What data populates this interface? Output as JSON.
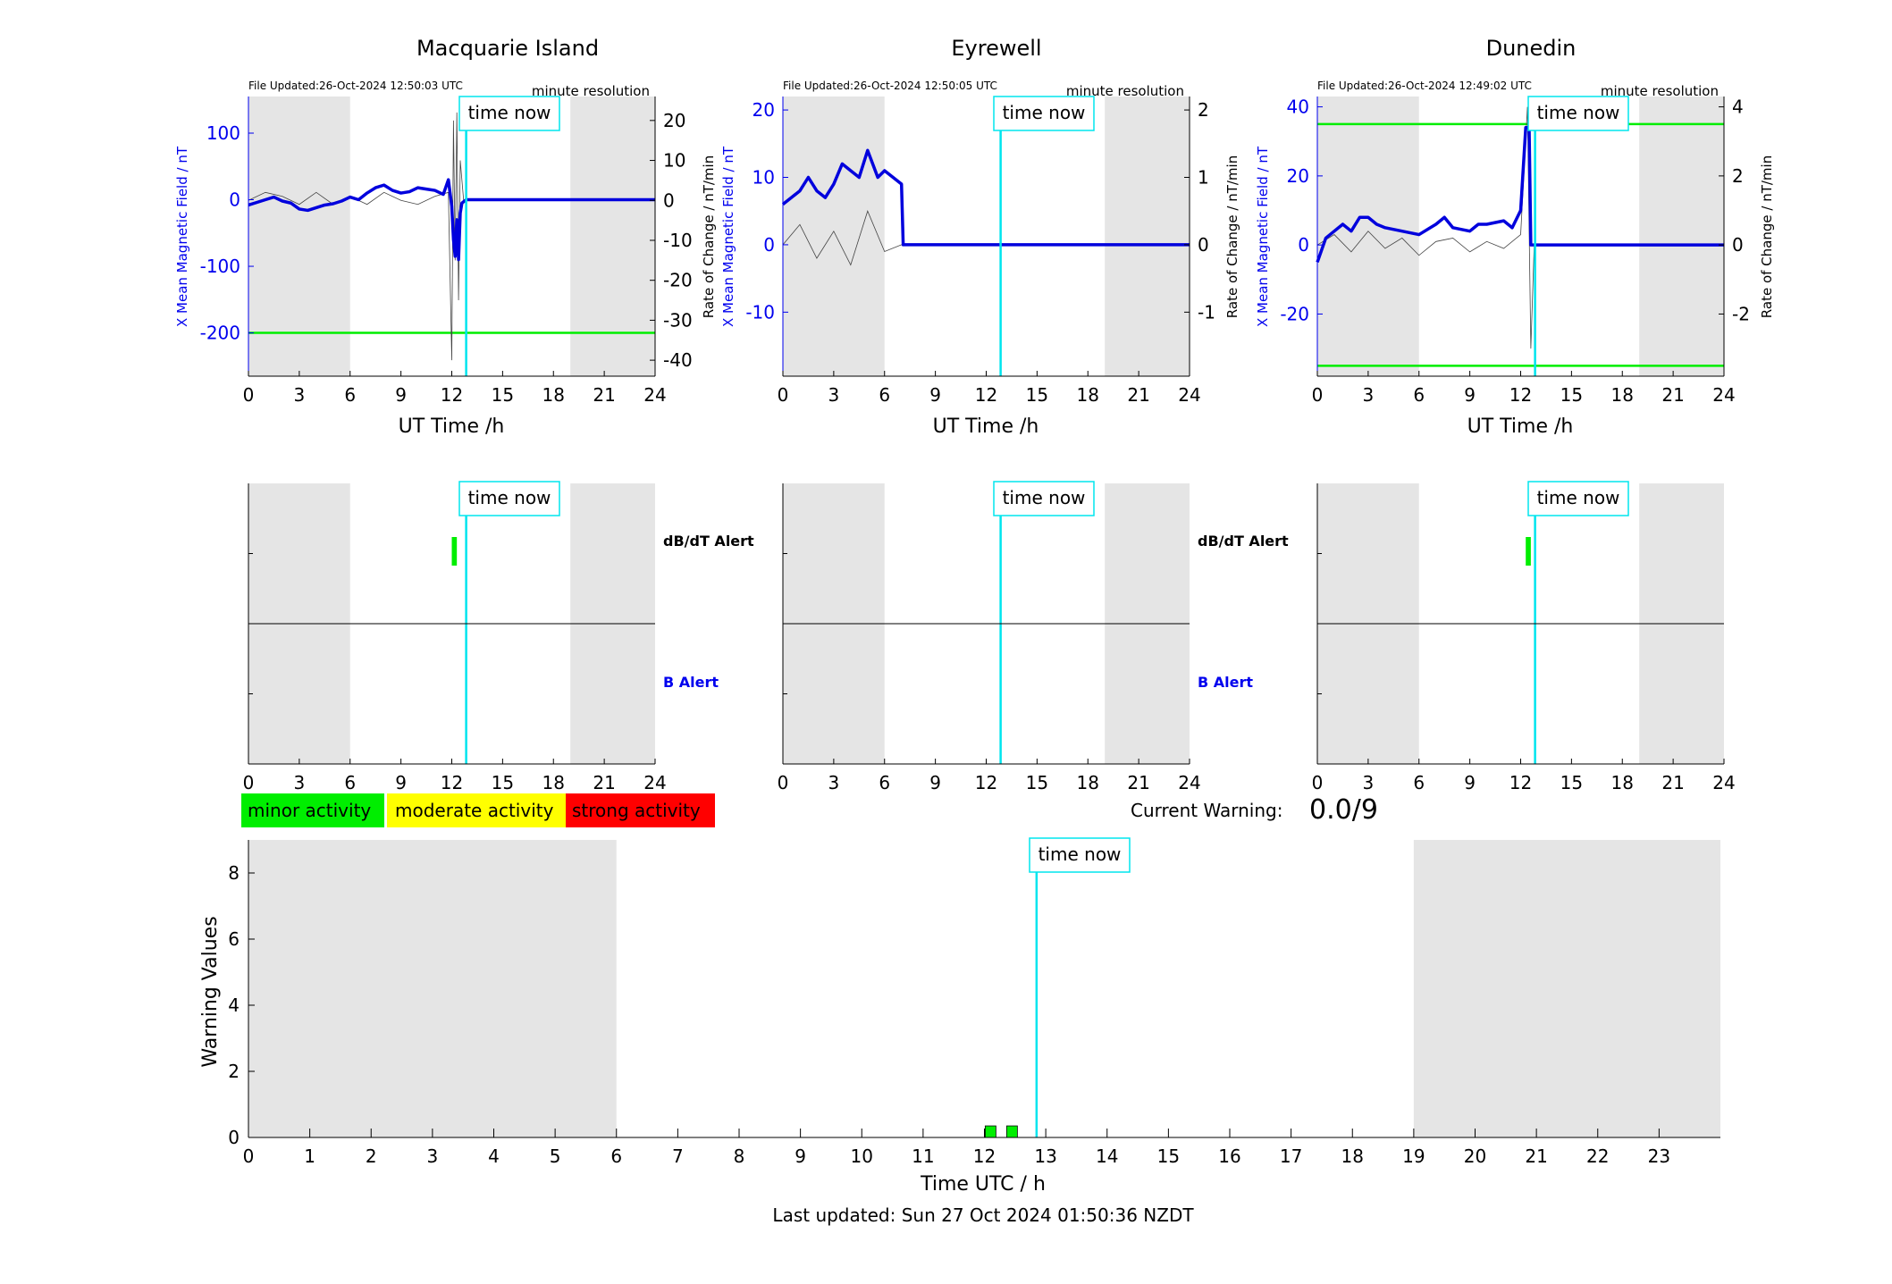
{
  "stations": [
    {
      "title": "Macquarie Island",
      "file_updated": "File Updated:26-Oct-2024 12:50:03 UTC",
      "resolution": "minute resolution",
      "ylabel_left": "X Mean Magnetic Field / nT",
      "ylabel_right": "Rate of Change / nT/min",
      "left_ticks": [
        100,
        0,
        -100,
        -200
      ],
      "right_ticks": [
        20,
        10,
        0,
        -10,
        -20,
        -30,
        -40
      ]
    },
    {
      "title": "Eyrewell",
      "file_updated": "File Updated:26-Oct-2024 12:50:05 UTC",
      "resolution": "minute resolution",
      "ylabel_left": "X Mean Magnetic Field / nT",
      "ylabel_right": "Rate of Change / nT/min",
      "left_ticks": [
        20,
        10,
        0,
        -10
      ],
      "right_ticks": [
        2,
        1,
        0,
        -1
      ]
    },
    {
      "title": "Dunedin",
      "file_updated": "File Updated:26-Oct-2024 12:49:02 UTC",
      "resolution": "minute resolution",
      "ylabel_left": "X Mean Magnetic Field / nT",
      "ylabel_right": "Rate of Change / nT/min",
      "left_ticks": [
        40,
        20,
        0,
        -20
      ],
      "right_ticks": [
        4,
        2,
        0,
        -2
      ]
    }
  ],
  "labels": {
    "time_now": "time now",
    "ut_time": "UT Time /h",
    "dbdt_alert": "dB/dT Alert",
    "b_alert": "B Alert",
    "legend_minor": "minor activity",
    "legend_moderate": "moderate activity",
    "legend_strong": "strong activity",
    "current_warning_label": "Current Warning:",
    "current_warning_value": "0.0/9",
    "warning_ylabel": "Warning Values",
    "warning_xlabel": "Time UTC / h",
    "last_updated": "Last updated: Sun 27 Oct 2024 01:50:36 NZDT"
  },
  "colors": {
    "field": "#0000dd",
    "rate": "#444444",
    "threshold": "#00ee00",
    "time_now": "#00e5ee",
    "night_shade": "#e5e5e5",
    "minor": "#00ee00",
    "moderate": "#ffff00",
    "strong": "#ff0000",
    "b_alert_text": "#0000ee"
  },
  "chart_data": [
    {
      "type": "line",
      "title": "Macquarie Island",
      "xlabel": "UT Time /h",
      "ylabel": "X Mean Magnetic Field / nT",
      "y2label": "Rate of Change / nT/min",
      "xlim": [
        0,
        24
      ],
      "ylim": [
        -265,
        155
      ],
      "y2lim": [
        -44,
        26
      ],
      "xticks": [
        0,
        3,
        6,
        9,
        12,
        15,
        18,
        21,
        24
      ],
      "night_shading_h": [
        [
          0,
          6
        ],
        [
          19,
          24
        ]
      ],
      "time_now_h": 12.85,
      "threshold_nT": [
        -200
      ],
      "series": [
        {
          "values": [
            [
              0,
              -8
            ],
            [
              0.5,
              -4
            ],
            [
              1,
              0
            ],
            [
              1.5,
              4
            ],
            [
              2,
              -2
            ],
            [
              2.5,
              -5
            ],
            [
              3,
              -14
            ],
            [
              3.5,
              -16
            ],
            [
              4,
              -12
            ],
            [
              4.5,
              -8
            ],
            [
              5,
              -6
            ],
            [
              5.5,
              -2
            ],
            [
              6,
              4
            ],
            [
              6.5,
              0
            ],
            [
              7,
              10
            ],
            [
              7.5,
              18
            ],
            [
              8,
              22
            ],
            [
              8.5,
              14
            ],
            [
              9,
              10
            ],
            [
              9.5,
              12
            ],
            [
              10,
              18
            ],
            [
              10.5,
              16
            ],
            [
              11,
              14
            ],
            [
              11.5,
              8
            ],
            [
              11.8,
              30
            ],
            [
              12.0,
              -10
            ],
            [
              12.1,
              -60
            ],
            [
              12.2,
              -85
            ],
            [
              12.3,
              -30
            ],
            [
              12.4,
              -90
            ],
            [
              12.5,
              -20
            ],
            [
              12.6,
              -5
            ],
            [
              12.85,
              0
            ],
            [
              24,
              0
            ]
          ]
        },
        {
          "values": [
            [
              0,
              0
            ],
            [
              1,
              2
            ],
            [
              2,
              1
            ],
            [
              3,
              -1
            ],
            [
              4,
              2
            ],
            [
              5,
              -1
            ],
            [
              6,
              1
            ],
            [
              7,
              -1
            ],
            [
              8,
              2
            ],
            [
              9,
              0
            ],
            [
              10,
              -1
            ],
            [
              11,
              1
            ],
            [
              11.8,
              2
            ],
            [
              12.0,
              -40
            ],
            [
              12.1,
              20
            ],
            [
              12.2,
              -15
            ],
            [
              12.3,
              22
            ],
            [
              12.4,
              -25
            ],
            [
              12.5,
              10
            ],
            [
              12.7,
              0
            ]
          ]
        }
      ]
    },
    {
      "type": "line",
      "title": "Eyrewell",
      "xlabel": "UT Time /h",
      "ylabel": "X Mean Magnetic Field / nT",
      "y2label": "Rate of Change / nT/min",
      "xlim": [
        0,
        24
      ],
      "ylim": [
        -19.5,
        22
      ],
      "y2lim": [
        -1.95,
        2.2
      ],
      "xticks": [
        0,
        3,
        6,
        9,
        12,
        15,
        18,
        21,
        24
      ],
      "night_shading_h": [
        [
          0,
          6
        ],
        [
          19,
          24
        ]
      ],
      "time_now_h": 12.85,
      "series": [
        {
          "values": [
            [
              0,
              6
            ],
            [
              0.5,
              7
            ],
            [
              1,
              8
            ],
            [
              1.5,
              10
            ],
            [
              2,
              8
            ],
            [
              2.5,
              7
            ],
            [
              3,
              9
            ],
            [
              3.5,
              12
            ],
            [
              4,
              11
            ],
            [
              4.5,
              10
            ],
            [
              5,
              14
            ],
            [
              5.3,
              12
            ],
            [
              5.6,
              10
            ],
            [
              6,
              11
            ],
            [
              6.5,
              10
            ],
            [
              7.0,
              9
            ],
            [
              7.1,
              0
            ],
            [
              24,
              0
            ]
          ]
        },
        {
          "values": [
            [
              0,
              0
            ],
            [
              1,
              0.3
            ],
            [
              2,
              -0.2
            ],
            [
              3,
              0.2
            ],
            [
              4,
              -0.3
            ],
            [
              5,
              0.5
            ],
            [
              6,
              -0.1
            ],
            [
              7,
              0
            ],
            [
              7.1,
              0
            ]
          ]
        }
      ]
    },
    {
      "type": "line",
      "title": "Dunedin",
      "xlabel": "UT Time /h",
      "ylabel": "X Mean Magnetic Field / nT",
      "y2label": "Rate of Change / nT/min",
      "xlim": [
        0,
        24
      ],
      "ylim": [
        -38,
        43
      ],
      "y2lim": [
        -3.8,
        4.3
      ],
      "xticks": [
        0,
        3,
        6,
        9,
        12,
        15,
        18,
        21,
        24
      ],
      "night_shading_h": [
        [
          0,
          6
        ],
        [
          19,
          24
        ]
      ],
      "time_now_h": 12.85,
      "threshold_nT": [
        35,
        -35
      ],
      "series": [
        {
          "values": [
            [
              0,
              -5
            ],
            [
              0.5,
              2
            ],
            [
              1,
              4
            ],
            [
              1.5,
              6
            ],
            [
              2,
              4
            ],
            [
              2.5,
              8
            ],
            [
              3,
              8
            ],
            [
              3.5,
              6
            ],
            [
              4,
              5
            ],
            [
              5,
              4
            ],
            [
              6,
              3
            ],
            [
              7,
              6
            ],
            [
              7.5,
              8
            ],
            [
              8,
              5
            ],
            [
              9,
              4
            ],
            [
              9.5,
              6
            ],
            [
              10,
              6
            ],
            [
              11,
              7
            ],
            [
              11.5,
              5
            ],
            [
              12,
              10
            ],
            [
              12.3,
              34
            ],
            [
              12.5,
              34
            ],
            [
              12.6,
              0
            ],
            [
              24,
              0
            ]
          ]
        },
        {
          "values": [
            [
              0,
              0
            ],
            [
              1,
              0.3
            ],
            [
              2,
              -0.2
            ],
            [
              3,
              0.4
            ],
            [
              4,
              -0.1
            ],
            [
              5,
              0.2
            ],
            [
              6,
              -0.3
            ],
            [
              7,
              0.1
            ],
            [
              8,
              0.2
            ],
            [
              9,
              -0.2
            ],
            [
              10,
              0.1
            ],
            [
              11,
              -0.1
            ],
            [
              12,
              0.3
            ],
            [
              12.4,
              4.0
            ],
            [
              12.6,
              -3.0
            ],
            [
              12.8,
              0
            ]
          ]
        }
      ]
    },
    {
      "type": "bar",
      "title": "",
      "xlabel": "Time UTC / h",
      "ylabel": "Warning Values",
      "xlim": [
        0,
        24
      ],
      "ylim": [
        0,
        9
      ],
      "xticks": [
        0,
        1,
        2,
        3,
        4,
        5,
        6,
        7,
        8,
        9,
        10,
        11,
        12,
        13,
        14,
        15,
        16,
        17,
        18,
        19,
        20,
        21,
        22,
        23
      ],
      "yticks": [
        0,
        2,
        4,
        6,
        8
      ],
      "night_shading_h": [
        [
          0,
          6
        ],
        [
          19,
          24
        ]
      ],
      "time_now_h": 12.85,
      "series": [
        {
          "values": [
            [
              12.1,
              0.35
            ],
            [
              12.45,
              0.35
            ]
          ]
        }
      ]
    }
  ]
}
